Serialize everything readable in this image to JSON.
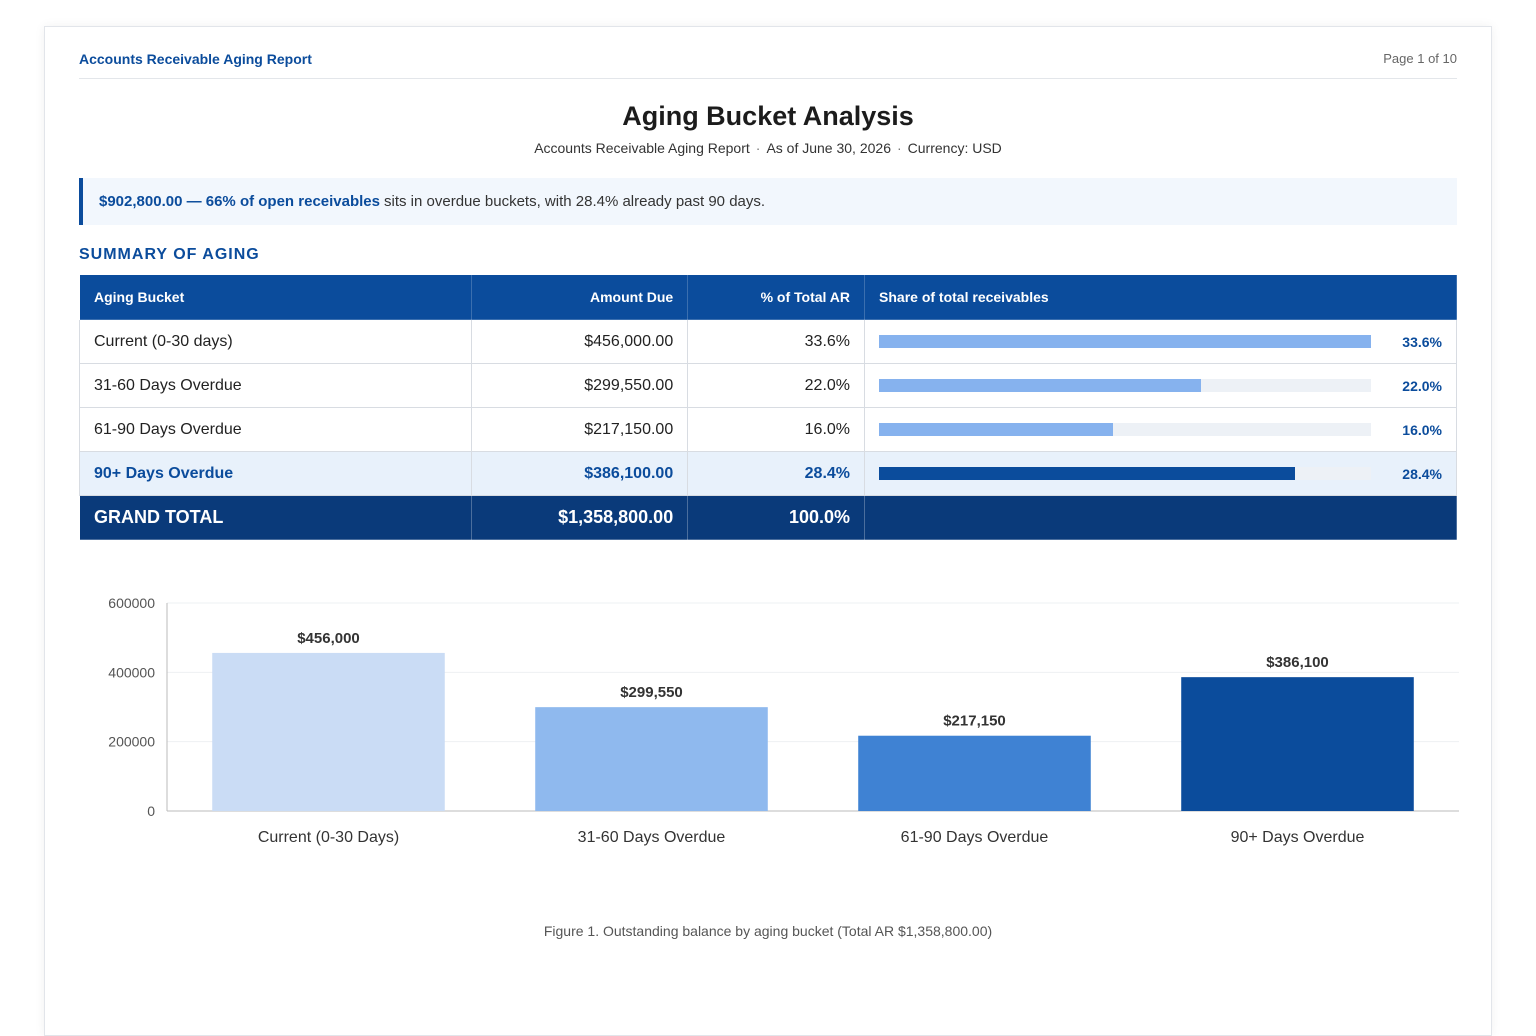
{
  "header": {
    "report_name": "Accounts Receivable Aging Report",
    "page_label": "Page 1 of 10"
  },
  "title": "Aging Bucket Analysis",
  "subtitle": {
    "report": "Accounts Receivable Aging Report",
    "as_of": "As of June 30, 2026",
    "currency": "Currency: USD",
    "separator": "·"
  },
  "callout": {
    "highlight": "$902,800.00 — 66% of open receivables",
    "rest": "sits in overdue buckets, with 28.4% already past 90 days."
  },
  "section_heading": "SUMMARY OF AGING",
  "table": {
    "headers": [
      "Aging Bucket",
      "Amount Due",
      "% of Total AR",
      "Share of total receivables"
    ],
    "rows": [
      {
        "bucket": "Current (0-30 days)",
        "amount": "$456,000.00",
        "pct": "33.6%",
        "share": 33.6,
        "share_label": "33.6%"
      },
      {
        "bucket": "31-60 Days Overdue",
        "amount": "$299,550.00",
        "pct": "22.0%",
        "share": 22.0,
        "share_label": "22.0%"
      },
      {
        "bucket": "61-90 Days Overdue",
        "amount": "$217,150.00",
        "pct": "16.0%",
        "share": 16.0,
        "share_label": "16.0%"
      },
      {
        "bucket": "90+ Days Overdue",
        "amount": "$386,100.00",
        "pct": "28.4%",
        "share": 28.4,
        "share_label": "28.4%"
      }
    ],
    "total": {
      "label": "GRAND TOTAL",
      "amount": "$1,358,800.00",
      "pct": "100.0%"
    },
    "share_max": 33.6,
    "colors": {
      "bar": "#86b2ee",
      "bar_highlight": "#0b4c9c"
    }
  },
  "chart_data": {
    "type": "bar",
    "categories": [
      "Current (0-30 Days)",
      "31-60 Days Overdue",
      "61-90 Days Overdue",
      "90+ Days Overdue"
    ],
    "values": [
      456000,
      299550,
      217150,
      386100
    ],
    "data_labels": [
      "$456,000",
      "$299,550",
      "$217,150",
      "$386,100"
    ],
    "bar_colors": [
      "#cadcf5",
      "#8fb9ee",
      "#3f82d3",
      "#0b4c9c"
    ],
    "ylim": [
      0,
      600000
    ],
    "yticks": [
      0,
      200000,
      400000,
      600000
    ],
    "grid": true,
    "title": "",
    "xlabel": "",
    "ylabel": ""
  },
  "caption": "Figure 1. Outstanding balance by aging bucket (Total AR $1,358,800.00)"
}
